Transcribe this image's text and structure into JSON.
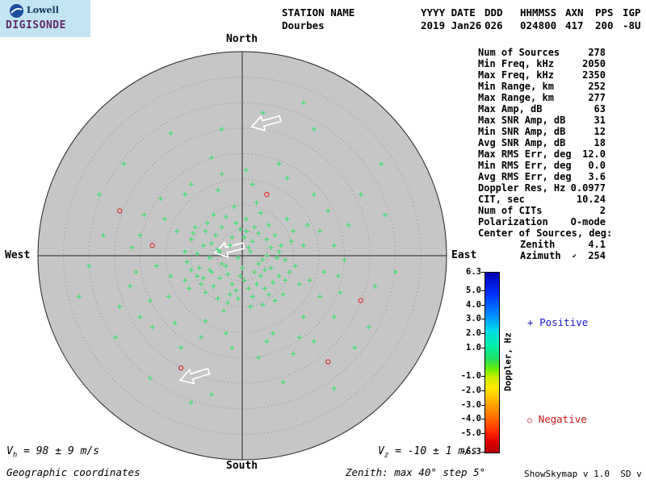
{
  "app": {
    "credit": "ShowSkymap v 1.0  SD v 5.1"
  },
  "logo": {
    "name": "Lowell",
    "product": "DIGISONDE"
  },
  "header": {
    "columns": [
      {
        "label": "STATION NAME",
        "value": "Dourbes"
      },
      {
        "label": "YYYY DATE",
        "value": "2019 Jan26"
      },
      {
        "label": "DDD",
        "value": "026"
      },
      {
        "label": "HHMMSS",
        "value": "024800"
      },
      {
        "label": "AXN",
        "value": "417"
      },
      {
        "label": "PPS",
        "value": "200"
      },
      {
        "label": "IGP",
        "value": "-8U"
      }
    ]
  },
  "stats": {
    "rows": [
      {
        "label": "Num of Sources",
        "value": "278"
      },
      {
        "label": "Min Freq, kHz",
        "value": "2050"
      },
      {
        "label": "Max Freq, kHz",
        "value": "2350"
      },
      {
        "label": "Min Range, km",
        "value": "252"
      },
      {
        "label": "Max Range, km",
        "value": "277"
      },
      {
        "label": "Max Amp, dB",
        "value": "63"
      },
      {
        "label": "Max SNR Amp, dB",
        "value": "31"
      },
      {
        "label": "Min SNR Amp, dB",
        "value": "12"
      },
      {
        "label": "Avg SNR Amp, dB",
        "value": "18"
      },
      {
        "label": "Max RMS Err, deg",
        "value": "12.0"
      },
      {
        "label": "Min RMS Err, deg",
        "value": "0.0"
      },
      {
        "label": "Avg RMS Err, deg",
        "value": "3.6"
      },
      {
        "label": "Doppler Res, Hz",
        "value": "0.0977"
      },
      {
        "label": "CIT, sec",
        "value": "10.24"
      },
      {
        "label": "Num of CITs",
        "value": "2"
      },
      {
        "label": "Polarization",
        "value": "O-mode"
      },
      {
        "label": "Center of Sources, deg:",
        "value": ""
      },
      {
        "label": "Zenith",
        "value": "4.1",
        "indent": true
      },
      {
        "label": "Azimuth",
        "value": "254",
        "indent": true,
        "icon": "↙"
      }
    ]
  },
  "plot": {
    "north": "North",
    "south": "South",
    "west": "West",
    "east": "East"
  },
  "legend": {
    "positive_marker": "+",
    "positive": "Positive",
    "positive_color": "#1414cc",
    "negative_marker": "○",
    "negative": "Negative",
    "negative_color": "#cc1414"
  },
  "colorbar": {
    "title": "Doppler, Hz",
    "range": [
      -6.3,
      6.3
    ],
    "ticks": [
      "6.3",
      "5.0",
      "4.0",
      "3.0",
      "2.0",
      "1.0",
      "-1.0",
      "-2.0",
      "-3.0",
      "-4.0",
      "-5.0",
      "-6.3"
    ]
  },
  "footer": {
    "vh_prefix": "V",
    "vh_sub": "h",
    "vh_value": " = 98 ± 9 m/s",
    "coords": "Geographic coordinates",
    "vz_prefix": "V",
    "vz_sub": "z",
    "vz_value": " = -10 ± 1 m/s",
    "zenith_note": "Zenith: max 40°  step 5°"
  },
  "chart_data": {
    "type": "scatter",
    "projection": "polar skymap (zenith vs azimuth)",
    "title": "Digisonde skymap of ionospheric sources — Dourbes, 2019 Jan26 024800",
    "zenith_max_deg": 40,
    "zenith_step_deg": 5,
    "orientation": {
      "top": "North",
      "bottom": "South",
      "left": "West",
      "right": "East"
    },
    "doppler_scale_hz": {
      "min": -6.3,
      "max": 6.3
    },
    "center_of_sources": {
      "zenith_deg": 4.1,
      "azimuth_deg": 254
    },
    "num_sources": 278,
    "plot_bg": "#c6c6c6",
    "ring_color": "#8f8f8f",
    "positive_color": "#3ce06e",
    "negative_color": "#e03232",
    "units_note": "points are [east_offset, south_offset] as fraction of 40-deg outer radius",
    "points_positive": [
      [
        -0.02,
        0.01
      ],
      [
        0.03,
        -0.04
      ],
      [
        -0.08,
        0.05
      ],
      [
        0.06,
        0.08
      ],
      [
        -0.12,
        -0.03
      ],
      [
        0.1,
        0.02
      ],
      [
        -0.05,
        -0.09
      ],
      [
        0.01,
        0.12
      ],
      [
        -0.15,
        0.08
      ],
      [
        0.08,
        -0.11
      ],
      [
        -0.03,
        0.17
      ],
      [
        0.14,
        0.06
      ],
      [
        -0.19,
        -0.05
      ],
      [
        0.05,
        0.2
      ],
      [
        -0.1,
        -0.14
      ],
      [
        0.18,
        -0.02
      ],
      [
        -0.22,
        0.1
      ],
      [
        0.02,
        -0.18
      ],
      [
        -0.07,
        0.23
      ],
      [
        0.21,
        0.12
      ],
      [
        -0.25,
        -0.08
      ],
      [
        0.11,
        0.16
      ],
      [
        -0.14,
        -0.2
      ],
      [
        0.24,
        -0.07
      ],
      [
        -0.04,
        -0.24
      ],
      [
        0.16,
        0.22
      ],
      [
        -0.27,
        0.03
      ],
      [
        0.07,
        -0.26
      ],
      [
        -0.18,
        0.18
      ],
      [
        0.26,
        0.05
      ],
      [
        -0.09,
        0.27
      ],
      [
        0.13,
        -0.15
      ],
      [
        -0.23,
        -0.14
      ],
      [
        0.04,
        0.25
      ],
      [
        -0.28,
        -0.02
      ],
      [
        0.22,
        -0.18
      ],
      [
        -0.01,
        -0.13
      ],
      [
        0.09,
        0.1
      ],
      [
        -0.16,
        0.01
      ],
      [
        0.28,
        0.14
      ],
      [
        -0.06,
        -0.05
      ],
      [
        0.12,
        -0.08
      ],
      [
        -0.2,
        0.14
      ],
      [
        0.0,
        0.06
      ],
      [
        -0.11,
        0.11
      ],
      [
        0.17,
        0.01
      ],
      [
        -0.26,
        0.16
      ],
      [
        0.05,
        -0.07
      ],
      [
        -0.13,
        -0.1
      ],
      [
        0.2,
        0.19
      ],
      [
        -0.02,
        0.21
      ],
      [
        0.1,
        0.24
      ],
      [
        -0.17,
        -0.16
      ],
      [
        0.25,
        -0.12
      ],
      [
        -0.08,
        -0.19
      ],
      [
        0.15,
        0.13
      ],
      [
        -0.21,
        0.06
      ],
      [
        0.03,
        0.16
      ],
      [
        -0.12,
        0.21
      ],
      [
        0.19,
        -0.05
      ],
      [
        -0.24,
        -0.11
      ],
      [
        0.08,
        0.04
      ],
      [
        -0.05,
        0.14
      ],
      [
        0.23,
        0.08
      ],
      [
        -0.15,
        -0.06
      ],
      [
        0.01,
        -0.09
      ],
      [
        -0.1,
        0.04
      ],
      [
        0.13,
        0.19
      ],
      [
        -0.19,
        0.11
      ],
      [
        0.06,
        -0.14
      ],
      [
        -0.03,
        -0.16
      ],
      [
        0.16,
        -0.1
      ],
      [
        -0.22,
        -0.01
      ],
      [
        0.11,
        0.07
      ],
      [
        -0.07,
        0.09
      ],
      [
        0.21,
        0.02
      ],
      [
        -0.14,
        0.15
      ],
      [
        0.04,
        -0.02
      ],
      [
        -0.25,
        0.07
      ],
      [
        0.09,
        -0.21
      ],
      [
        -0.01,
        0.1
      ],
      [
        0.14,
        -0.04
      ],
      [
        -0.18,
        -0.12
      ],
      [
        0.07,
        0.14
      ],
      [
        -0.11,
        -0.02
      ],
      [
        0.18,
        0.1
      ],
      [
        -0.06,
        0.19
      ],
      [
        0.02,
        -0.12
      ],
      [
        -0.16,
        0.07
      ],
      [
        0.12,
        0.0
      ],
      [
        -0.35,
        0.1
      ],
      [
        0.32,
        -0.15
      ],
      [
        -0.28,
        -0.3
      ],
      [
        0.15,
        0.38
      ],
      [
        -0.42,
        0.05
      ],
      [
        0.38,
        0.2
      ],
      [
        -0.1,
        -0.4
      ],
      [
        0.3,
        0.3
      ],
      [
        -0.38,
        -0.18
      ],
      [
        0.45,
        -0.05
      ],
      [
        -0.2,
        0.4
      ],
      [
        0.05,
        -0.35
      ],
      [
        -0.45,
        0.22
      ],
      [
        0.4,
        0.08
      ],
      [
        -0.33,
        0.33
      ],
      [
        0.22,
        -0.38
      ],
      [
        -0.5,
        -0.1
      ],
      [
        0.35,
        -0.3
      ],
      [
        -0.05,
        0.45
      ],
      [
        0.48,
        0.18
      ],
      [
        -0.4,
        -0.28
      ],
      [
        0.12,
        0.42
      ],
      [
        -0.3,
        0.45
      ],
      [
        0.42,
        -0.22
      ],
      [
        -0.52,
        0.08
      ],
      [
        0.28,
        0.4
      ],
      [
        -0.15,
        -0.48
      ],
      [
        0.5,
        0.02
      ],
      [
        -0.48,
        -0.2
      ],
      [
        0.08,
        0.5
      ],
      [
        -0.36,
        0.2
      ],
      [
        0.33,
        0.12
      ],
      [
        -0.25,
        -0.35
      ],
      [
        0.45,
        0.3
      ],
      [
        -0.54,
        -0.04
      ],
      [
        0.18,
        -0.45
      ],
      [
        -0.08,
        0.38
      ],
      [
        0.38,
        -0.12
      ],
      [
        -0.44,
        0.35
      ],
      [
        0.25,
        0.48
      ],
      [
        -0.32,
        -0.12
      ],
      [
        0.52,
        -0.15
      ],
      [
        -0.18,
        0.32
      ],
      [
        0.02,
        -0.42
      ],
      [
        -0.5,
        0.3
      ],
      [
        0.35,
        0.42
      ],
      [
        -0.28,
        0.12
      ],
      [
        0.47,
        0.1
      ],
      [
        -0.12,
        -0.32
      ],
      [
        0.3,
        -0.05
      ],
      [
        -0.6,
        0.25
      ],
      [
        0.58,
        -0.3
      ],
      [
        -0.35,
        -0.6
      ],
      [
        0.2,
        0.62
      ],
      [
        -0.68,
        -0.1
      ],
      [
        0.65,
        0.15
      ],
      [
        -0.15,
        0.68
      ],
      [
        0.55,
        0.45
      ],
      [
        -0.62,
        0.4
      ],
      [
        0.35,
        -0.62
      ],
      [
        -0.75,
        0.05
      ],
      [
        0.7,
        -0.2
      ],
      [
        -0.45,
        0.6
      ],
      [
        0.1,
        -0.7
      ],
      [
        -0.58,
        -0.45
      ],
      [
        0.62,
        0.35
      ],
      [
        -0.25,
        0.72
      ],
      [
        0.75,
        0.08
      ],
      [
        -0.7,
        -0.3
      ],
      [
        0.45,
        0.65
      ],
      [
        -0.8,
        0.2
      ],
      [
        0.3,
        -0.75
      ],
      [
        -0.1,
        -0.62
      ],
      [
        0.68,
        -0.45
      ],
      [
        -0.55,
        0.15
      ]
    ],
    "points_negative": [
      [
        -0.3,
        0.55
      ],
      [
        0.42,
        0.52
      ],
      [
        -0.6,
        -0.22
      ],
      [
        0.12,
        -0.3
      ],
      [
        -0.44,
        -0.05
      ],
      [
        0.58,
        0.22
      ]
    ],
    "drift_arrows": [
      {
        "dx": 0.11,
        "dy": -0.65,
        "angle_deg": 164
      },
      {
        "dx": -0.07,
        "dy": -0.03,
        "angle_deg": 166
      },
      {
        "dx": -0.24,
        "dy": 0.59,
        "angle_deg": 162
      }
    ]
  }
}
